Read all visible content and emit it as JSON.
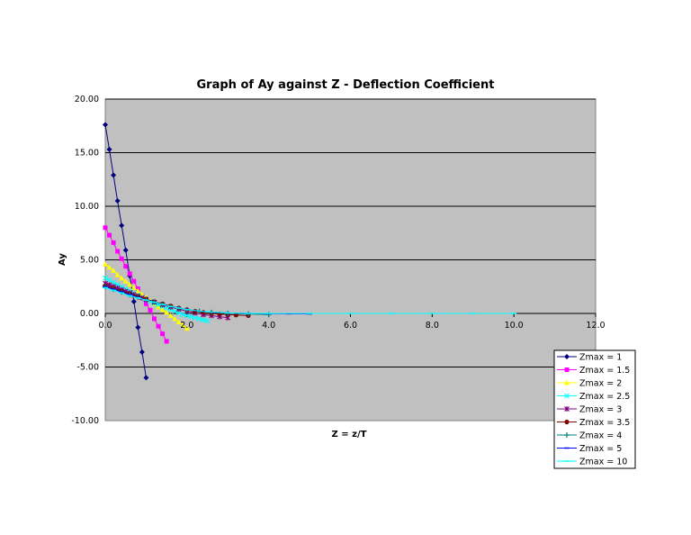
{
  "chart_data": {
    "type": "line",
    "title": "Graph of Ay against Z - Deflection Coefficient",
    "xlabel": "Z = z/T",
    "ylabel": "Ay",
    "xlim": [
      0,
      12
    ],
    "ylim": [
      -10,
      20
    ],
    "x_ticks": [
      "0.0",
      "2.0",
      "4.0",
      "6.0",
      "8.0",
      "10.0",
      "12.0"
    ],
    "y_ticks": [
      "20.00",
      "15.00",
      "10.00",
      "5.00",
      "0.00",
      "-5.00",
      "-10.00"
    ],
    "x_tick_values": [
      0,
      2,
      4,
      6,
      8,
      10,
      12
    ],
    "y_tick_values": [
      20,
      15,
      10,
      5,
      0,
      -5,
      -10
    ],
    "grid": "horizontal",
    "plot_background": "#c0c0c0",
    "legend_position": "bottom-right",
    "series": [
      {
        "name": "Zmax = 1",
        "color": "#000080",
        "marker": "diamond",
        "x": [
          0,
          0.1,
          0.2,
          0.3,
          0.4,
          0.5,
          0.6,
          0.7,
          0.8,
          0.9,
          1.0
        ],
        "y": [
          17.6,
          15.3,
          12.9,
          10.5,
          8.2,
          5.9,
          3.5,
          1.1,
          -1.3,
          -3.6,
          -6.0
        ]
      },
      {
        "name": "Zmax = 1.5",
        "color": "#ff00ff",
        "marker": "square",
        "x": [
          0,
          0.1,
          0.2,
          0.3,
          0.4,
          0.5,
          0.6,
          0.7,
          0.8,
          0.9,
          1.0,
          1.1,
          1.2,
          1.3,
          1.4,
          1.5
        ],
        "y": [
          8.0,
          7.3,
          6.6,
          5.8,
          5.1,
          4.4,
          3.7,
          3.0,
          2.3,
          1.6,
          0.9,
          0.3,
          -0.5,
          -1.2,
          -1.9,
          -2.6
        ]
      },
      {
        "name": "Zmax = 2",
        "color": "#ffff00",
        "marker": "triangle",
        "x": [
          0,
          0.1,
          0.2,
          0.3,
          0.4,
          0.5,
          0.6,
          0.7,
          0.8,
          0.9,
          1.0,
          1.1,
          1.2,
          1.3,
          1.4,
          1.5,
          1.6,
          1.7,
          1.8,
          1.9,
          2.0
        ],
        "y": [
          4.6,
          4.3,
          4.0,
          3.6,
          3.3,
          3.0,
          2.7,
          2.4,
          2.1,
          1.8,
          1.5,
          1.2,
          0.9,
          0.6,
          0.35,
          0.1,
          -0.2,
          -0.5,
          -0.8,
          -1.1,
          -1.4
        ]
      },
      {
        "name": "Zmax = 2.5",
        "color": "#00ffff",
        "marker": "x",
        "x": [
          0,
          0.1,
          0.2,
          0.3,
          0.4,
          0.5,
          0.6,
          0.7,
          0.8,
          0.9,
          1.0,
          1.1,
          1.2,
          1.3,
          1.4,
          1.5,
          1.6,
          1.7,
          1.8,
          1.9,
          2.0,
          2.1,
          2.2,
          2.3,
          2.4,
          2.5
        ],
        "y": [
          3.3,
          3.1,
          2.9,
          2.7,
          2.5,
          2.3,
          2.1,
          1.9,
          1.7,
          1.5,
          1.3,
          1.1,
          0.95,
          0.8,
          0.65,
          0.5,
          0.35,
          0.2,
          0.05,
          -0.1,
          -0.2,
          -0.3,
          -0.4,
          -0.5,
          -0.6,
          -0.7
        ]
      },
      {
        "name": "Zmax = 3",
        "color": "#800080",
        "marker": "star",
        "x": [
          0,
          0.1,
          0.2,
          0.3,
          0.4,
          0.5,
          0.6,
          0.7,
          0.8,
          0.9,
          1.0,
          1.2,
          1.4,
          1.6,
          1.8,
          2.0,
          2.2,
          2.4,
          2.6,
          2.8,
          3.0
        ],
        "y": [
          2.8,
          2.65,
          2.5,
          2.35,
          2.2,
          2.05,
          1.9,
          1.75,
          1.6,
          1.45,
          1.3,
          1.05,
          0.8,
          0.6,
          0.4,
          0.2,
          0.05,
          -0.1,
          -0.2,
          -0.3,
          -0.4
        ]
      },
      {
        "name": "Zmax = 3.5",
        "color": "#800000",
        "marker": "circle",
        "x": [
          0,
          0.2,
          0.4,
          0.6,
          0.8,
          1.0,
          1.2,
          1.4,
          1.6,
          1.8,
          2.0,
          2.2,
          2.4,
          2.6,
          2.8,
          3.0,
          3.2,
          3.5
        ],
        "y": [
          2.6,
          2.35,
          2.1,
          1.85,
          1.6,
          1.35,
          1.1,
          0.9,
          0.7,
          0.5,
          0.35,
          0.2,
          0.1,
          0.0,
          -0.05,
          -0.1,
          -0.15,
          -0.2
        ]
      },
      {
        "name": "Zmax = 4",
        "color": "#008080",
        "marker": "plus",
        "x": [
          0,
          0.2,
          0.4,
          0.6,
          0.8,
          1.0,
          1.2,
          1.4,
          1.6,
          1.8,
          2.0,
          2.3,
          2.6,
          3.0,
          3.5,
          4.0
        ],
        "y": [
          2.5,
          2.25,
          2.0,
          1.75,
          1.5,
          1.25,
          1.05,
          0.85,
          0.65,
          0.5,
          0.35,
          0.2,
          0.1,
          0.0,
          -0.05,
          -0.1
        ]
      },
      {
        "name": "Zmax = 5",
        "color": "#0000ff",
        "marker": "dash",
        "x": [
          0,
          0.2,
          0.4,
          0.6,
          0.8,
          1.0,
          1.2,
          1.4,
          1.6,
          1.8,
          2.0,
          2.5,
          3.0,
          3.5,
          4.0,
          4.5,
          5.0
        ],
        "y": [
          2.5,
          2.25,
          2.0,
          1.75,
          1.5,
          1.25,
          1.05,
          0.85,
          0.65,
          0.5,
          0.35,
          0.15,
          0.05,
          0.0,
          -0.02,
          -0.03,
          -0.04
        ]
      },
      {
        "name": "Zmax = 10",
        "color": "#00ffff",
        "marker": "dash",
        "x": [
          0,
          0.2,
          0.4,
          0.6,
          0.8,
          1.0,
          1.2,
          1.4,
          1.6,
          1.8,
          2.0,
          2.5,
          3.0,
          3.5,
          4.0,
          5.0,
          6.0,
          7.0,
          8.0,
          9.0,
          10.0
        ],
        "y": [
          2.4,
          2.15,
          1.9,
          1.65,
          1.45,
          1.25,
          1.05,
          0.85,
          0.65,
          0.5,
          0.35,
          0.15,
          0.05,
          0.0,
          0.0,
          0.0,
          0.0,
          0.0,
          0.0,
          0.0,
          0.0
        ]
      }
    ]
  }
}
